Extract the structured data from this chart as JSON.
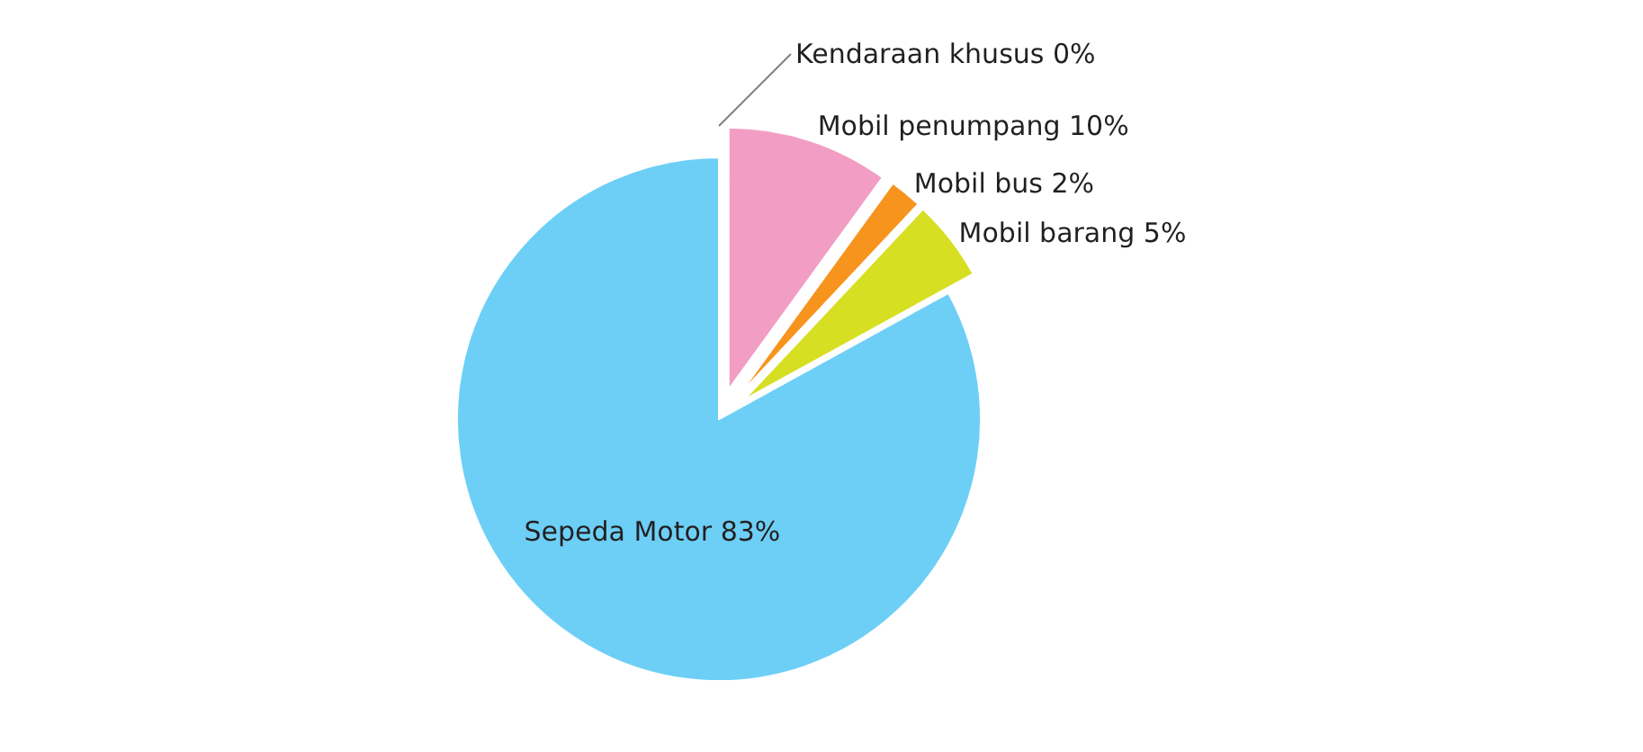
{
  "chart_data": {
    "type": "pie",
    "categories": [
      "Kendaraan khusus",
      "Mobil penumpang",
      "Mobil bus",
      "Mobil barang",
      "Sepeda Motor"
    ],
    "values": [
      0,
      10,
      2,
      5,
      83
    ],
    "value_labels": [
      "0%",
      "10%",
      "2%",
      "5%",
      "83%"
    ],
    "colors": [
      "#231f20",
      "#f29ec4",
      "#f7941d",
      "#d7df23",
      "#6dcff6"
    ],
    "legend": false
  }
}
